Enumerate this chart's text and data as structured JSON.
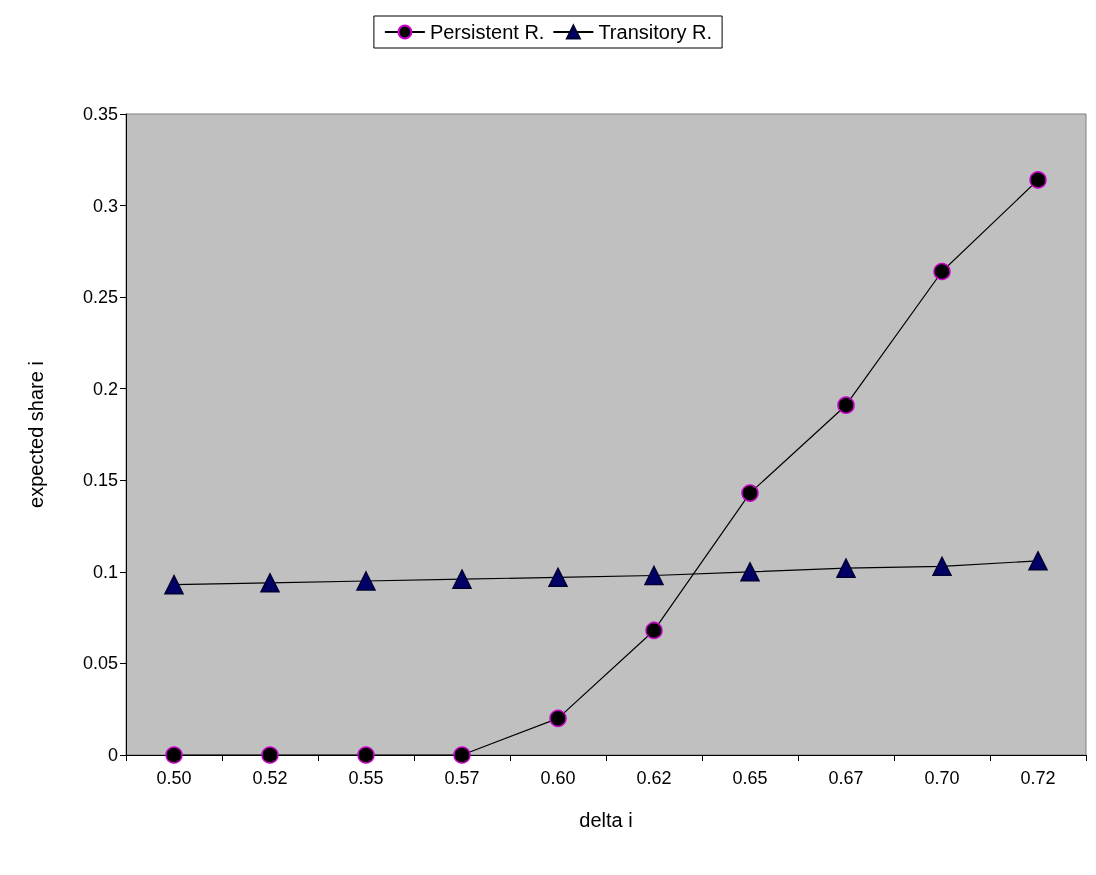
{
  "chart_data": {
    "type": "line",
    "xlabel": "delta i",
    "ylabel": "expected share i",
    "categories": [
      "0.50",
      "0.52",
      "0.55",
      "0.57",
      "0.60",
      "0.62",
      "0.65",
      "0.67",
      "0.70",
      "0.72"
    ],
    "series": [
      {
        "name": "Persistent R.",
        "color": "#000000",
        "marker": "circle",
        "values": [
          0,
          0,
          0,
          0,
          0.02,
          0.068,
          0.143,
          0.191,
          0.264,
          0.314
        ]
      },
      {
        "name": "Transitory R.",
        "color": "#000066",
        "marker": "triangle",
        "values": [
          0.093,
          0.094,
          0.095,
          0.096,
          0.097,
          0.098,
          0.1,
          0.102,
          0.103,
          0.106
        ]
      }
    ],
    "ylim": [
      0,
      0.35
    ],
    "yticks": [
      0,
      0.05,
      0.1,
      0.15,
      0.2,
      0.25,
      0.3,
      0.35
    ],
    "grid": false,
    "legend": "top",
    "line_style": "solid"
  }
}
